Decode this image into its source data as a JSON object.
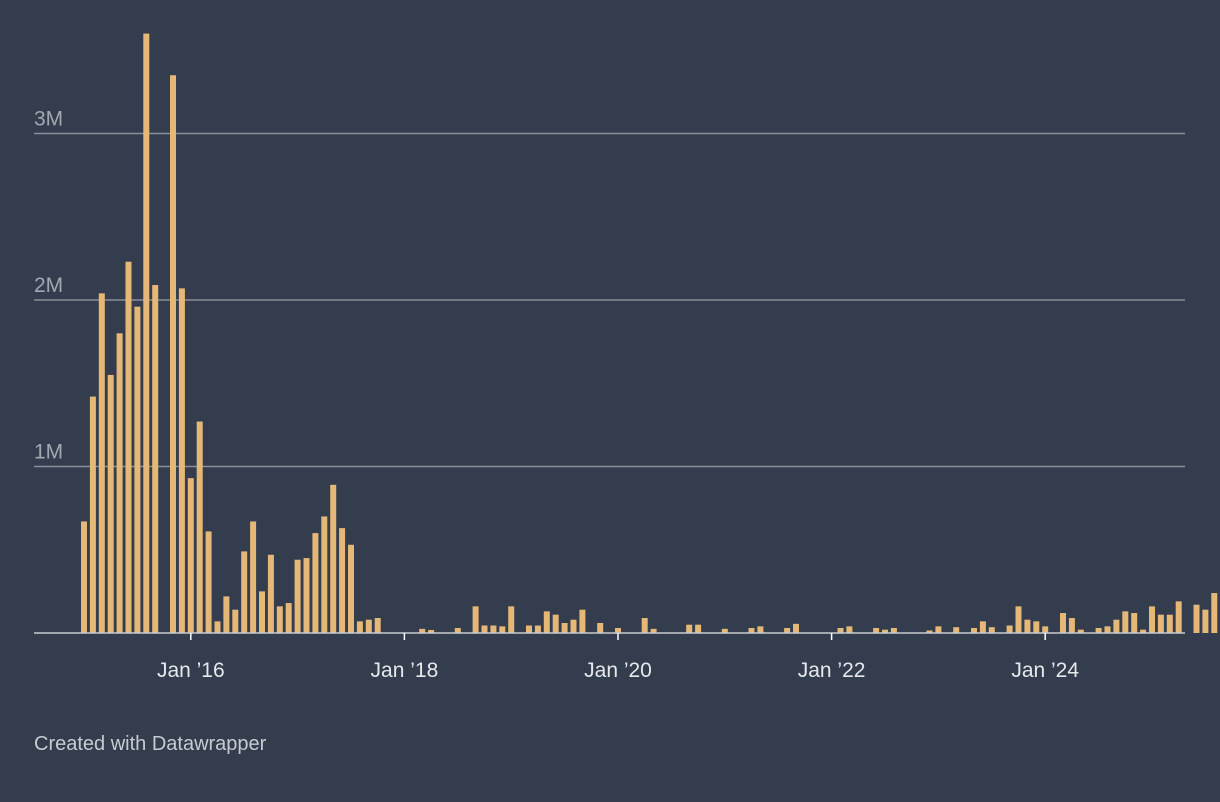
{
  "chart_data": {
    "type": "bar",
    "x_axis": {
      "type": "date",
      "ticks": [
        "2016-01",
        "2018-01",
        "2020-01",
        "2022-01",
        "2024-01"
      ],
      "tick_labels": [
        "Jan ’16",
        "Jan ’18",
        "Jan ’20",
        "Jan ’22",
        "Jan ’24"
      ]
    },
    "y_axis": {
      "ylim": [
        0,
        3600000
      ],
      "ticks": [
        1000000,
        2000000,
        3000000
      ],
      "tick_labels": [
        "1M",
        "2M",
        "3M"
      ]
    },
    "grid": true,
    "series": [
      {
        "values": [
          [
            "2015-01",
            670000
          ],
          [
            "2015-02",
            1420000
          ],
          [
            "2015-03",
            2040000
          ],
          [
            "2015-04",
            1550000
          ],
          [
            "2015-05",
            1800000
          ],
          [
            "2015-06",
            2230000
          ],
          [
            "2015-07",
            1960000
          ],
          [
            "2015-08",
            3600000
          ],
          [
            "2015-09",
            2090000
          ],
          [
            "2015-11",
            3350000
          ],
          [
            "2015-12",
            2070000
          ],
          [
            "2016-01",
            930000
          ],
          [
            "2016-02",
            1270000
          ],
          [
            "2016-03",
            610000
          ],
          [
            "2016-04",
            70000
          ],
          [
            "2016-05",
            220000
          ],
          [
            "2016-06",
            140000
          ],
          [
            "2016-07",
            490000
          ],
          [
            "2016-08",
            670000
          ],
          [
            "2016-09",
            250000
          ],
          [
            "2016-10",
            470000
          ],
          [
            "2016-11",
            160000
          ],
          [
            "2016-12",
            180000
          ],
          [
            "2017-01",
            440000
          ],
          [
            "2017-02",
            450000
          ],
          [
            "2017-03",
            600000
          ],
          [
            "2017-04",
            700000
          ],
          [
            "2017-05",
            890000
          ],
          [
            "2017-06",
            630000
          ],
          [
            "2017-07",
            530000
          ],
          [
            "2017-08",
            70000
          ],
          [
            "2017-09",
            80000
          ],
          [
            "2017-10",
            90000
          ],
          [
            "2018-03",
            25000
          ],
          [
            "2018-04",
            18000
          ],
          [
            "2018-07",
            30000
          ],
          [
            "2018-09",
            160000
          ],
          [
            "2018-10",
            45000
          ],
          [
            "2018-11",
            45000
          ],
          [
            "2018-12",
            40000
          ],
          [
            "2019-01",
            160000
          ],
          [
            "2019-03",
            45000
          ],
          [
            "2019-04",
            45000
          ],
          [
            "2019-05",
            130000
          ],
          [
            "2019-06",
            110000
          ],
          [
            "2019-07",
            60000
          ],
          [
            "2019-08",
            80000
          ],
          [
            "2019-09",
            140000
          ],
          [
            "2019-11",
            60000
          ],
          [
            "2020-01",
            30000
          ],
          [
            "2020-04",
            90000
          ],
          [
            "2020-05",
            25000
          ],
          [
            "2020-09",
            50000
          ],
          [
            "2020-10",
            50000
          ],
          [
            "2021-01",
            25000
          ],
          [
            "2021-04",
            30000
          ],
          [
            "2021-05",
            40000
          ],
          [
            "2021-08",
            30000
          ],
          [
            "2021-09",
            55000
          ],
          [
            "2022-02",
            30000
          ],
          [
            "2022-03",
            40000
          ],
          [
            "2022-06",
            30000
          ],
          [
            "2022-07",
            20000
          ],
          [
            "2022-08",
            30000
          ],
          [
            "2022-12",
            15000
          ],
          [
            "2023-01",
            40000
          ],
          [
            "2023-03",
            35000
          ],
          [
            "2023-05",
            30000
          ],
          [
            "2023-06",
            70000
          ],
          [
            "2023-07",
            35000
          ],
          [
            "2023-09",
            45000
          ],
          [
            "2023-10",
            160000
          ],
          [
            "2023-11",
            80000
          ],
          [
            "2023-12",
            70000
          ],
          [
            "2024-01",
            40000
          ],
          [
            "2024-03",
            120000
          ],
          [
            "2024-04",
            90000
          ],
          [
            "2024-05",
            20000
          ],
          [
            "2024-07",
            30000
          ],
          [
            "2024-08",
            40000
          ],
          [
            "2024-09",
            80000
          ],
          [
            "2024-10",
            130000
          ],
          [
            "2024-11",
            120000
          ],
          [
            "2024-12",
            20000
          ],
          [
            "2025-01",
            160000
          ],
          [
            "2025-02",
            110000
          ],
          [
            "2025-03",
            110000
          ],
          [
            "2025-04",
            190000
          ],
          [
            "2025-06",
            170000
          ],
          [
            "2025-07",
            140000
          ],
          [
            "2025-08",
            240000
          ]
        ]
      }
    ]
  },
  "colors": {
    "background": "#333d4d",
    "bar": "#e6b877",
    "gridline": "#8a8e96",
    "axis": "#c8ccd2"
  },
  "credit": "Created with Datawrapper"
}
